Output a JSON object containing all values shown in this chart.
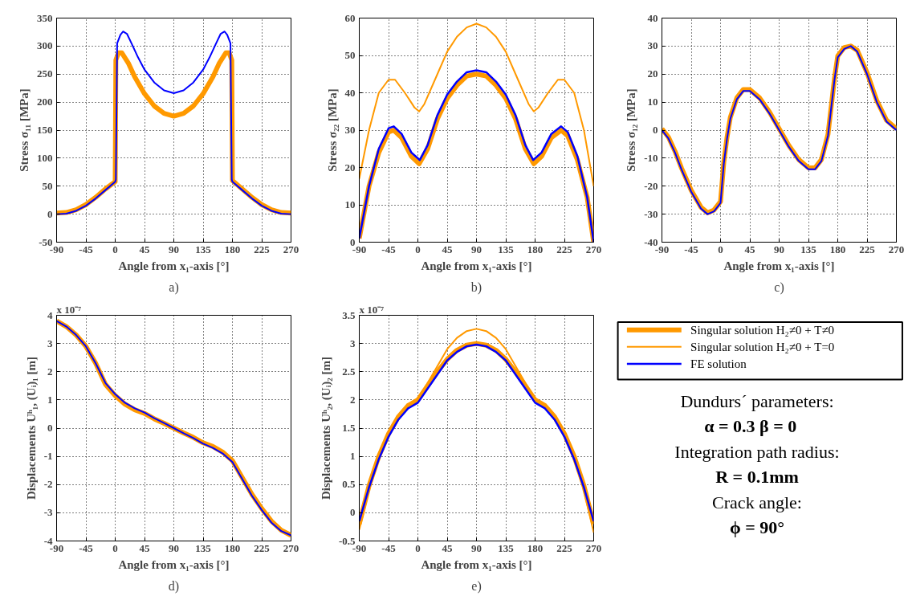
{
  "chart_data": [
    {
      "type": "line",
      "title": "a)",
      "xlabel": "Angle from x₁-axis [°]",
      "ylabel": "Stress σ₁₁ [MPa]",
      "xlim": [
        -90,
        270
      ],
      "ylim": [
        -50,
        350
      ],
      "xticks": [
        -90,
        -45,
        0,
        45,
        90,
        135,
        180,
        225,
        270
      ],
      "yticks": [
        -50,
        0,
        50,
        100,
        150,
        200,
        250,
        300,
        350
      ],
      "grid": true,
      "legend": false,
      "series": [
        {
          "color": "#ff9900",
          "x": [
            -90,
            -75,
            -60,
            -45,
            -30,
            -15,
            0,
            1,
            5,
            10,
            20,
            30,
            45,
            60,
            75,
            90,
            105,
            120,
            135,
            150,
            160,
            170,
            175,
            179,
            180,
            195,
            210,
            225,
            240,
            255,
            270
          ],
          "values": [
            2,
            3,
            8,
            17,
            30,
            45,
            58,
            275,
            288,
            288,
            270,
            245,
            215,
            193,
            180,
            175,
            180,
            193,
            215,
            245,
            270,
            288,
            288,
            275,
            60,
            45,
            30,
            17,
            8,
            3,
            2
          ]
        },
        {
          "color": "#0000ff",
          "x": [
            -90,
            -75,
            -60,
            -45,
            -30,
            -15,
            0,
            1,
            3,
            8,
            12,
            18,
            25,
            35,
            45,
            60,
            75,
            90,
            105,
            120,
            135,
            145,
            155,
            162,
            168,
            172,
            177,
            179,
            180,
            195,
            210,
            225,
            240,
            255,
            270
          ],
          "values": [
            0,
            1,
            6,
            15,
            28,
            43,
            58,
            62,
            305,
            320,
            326,
            322,
            305,
            280,
            258,
            235,
            221,
            216,
            221,
            235,
            258,
            280,
            305,
            322,
            326,
            320,
            305,
            62,
            58,
            43,
            28,
            15,
            6,
            1,
            0
          ]
        }
      ]
    },
    {
      "type": "line",
      "title": "b)",
      "xlabel": "Angle from x₁-axis [°]",
      "ylabel": "Stress σ₂₂ [MPa]",
      "xlim": [
        -90,
        270
      ],
      "ylim": [
        0,
        60
      ],
      "xticks": [
        -90,
        -45,
        0,
        45,
        90,
        135,
        180,
        225,
        270
      ],
      "yticks": [
        0,
        10,
        20,
        30,
        40,
        50,
        60
      ],
      "grid": true,
      "legend": false,
      "series": [
        {
          "color": "#ff9900",
          "x": [
            -90,
            -75,
            -60,
            -45,
            -37,
            -25,
            -10,
            2,
            15,
            30,
            45,
            60,
            75,
            90,
            105,
            120,
            135,
            150,
            165,
            178,
            190,
            205,
            220,
            230,
            245,
            260,
            270
          ],
          "values": [
            1,
            15,
            24,
            29.5,
            30,
            28,
            23,
            21,
            25,
            33,
            38.5,
            42,
            44.5,
            45,
            44.5,
            42,
            38.5,
            33,
            25,
            21,
            23,
            28,
            30,
            28.5,
            22,
            12,
            0
          ]
        },
        {
          "color": "#ff9900",
          "x": [
            -90,
            -75,
            -60,
            -45,
            -35,
            -20,
            -5,
            2,
            10,
            30,
            45,
            60,
            75,
            90,
            105,
            120,
            135,
            150,
            170,
            178,
            185,
            200,
            215,
            225,
            240,
            255,
            270
          ],
          "values": [
            17,
            30,
            40,
            43.5,
            43.5,
            40,
            36,
            35,
            37,
            45,
            51,
            55,
            57.5,
            58.5,
            57.5,
            55,
            51,
            45,
            37,
            35,
            36,
            40,
            43.5,
            43.5,
            40,
            30,
            15
          ]
        },
        {
          "color": "#0000ff",
          "x": [
            -90,
            -75,
            -60,
            -45,
            -37,
            -25,
            -10,
            3,
            15,
            30,
            45,
            60,
            75,
            90,
            105,
            120,
            135,
            150,
            165,
            177,
            190,
            205,
            220,
            230,
            245,
            260,
            270
          ],
          "values": [
            1,
            15,
            25,
            30.5,
            31,
            29,
            24,
            22,
            26,
            34,
            39.5,
            43,
            45.5,
            46,
            45.5,
            43,
            39.5,
            34,
            26,
            22,
            24,
            29,
            31,
            29.5,
            23,
            12,
            0
          ]
        }
      ]
    },
    {
      "type": "line",
      "title": "c)",
      "xlabel": "Angle from x₁-axis [°]",
      "ylabel": "Stress σ₁₂ [MPa]",
      "xlim": [
        -90,
        270
      ],
      "ylim": [
        -40,
        40
      ],
      "xticks": [
        -90,
        -45,
        0,
        45,
        90,
        135,
        180,
        225,
        270
      ],
      "yticks": [
        -40,
        -30,
        -20,
        -10,
        0,
        10,
        20,
        30,
        40
      ],
      "grid": true,
      "legend": false,
      "series": [
        {
          "color": "#ff9900",
          "x": [
            -90,
            -80,
            -70,
            -60,
            -45,
            -30,
            -20,
            -10,
            0,
            5,
            10,
            15,
            25,
            35,
            45,
            60,
            75,
            90,
            105,
            120,
            135,
            145,
            155,
            165,
            175,
            180,
            190,
            200,
            210,
            225,
            240,
            255,
            270
          ],
          "values": [
            0.5,
            -2.5,
            -7.5,
            -13.5,
            -21.5,
            -27.5,
            -29.5,
            -28.5,
            -25.5,
            -11.5,
            -2.5,
            4.5,
            11.5,
            14.5,
            14.5,
            11.5,
            6.5,
            0.5,
            -5.5,
            -10.5,
            -13.5,
            -13.5,
            -10.5,
            -1.5,
            18.5,
            26.5,
            29.5,
            30,
            28.5,
            20.5,
            10.5,
            3.5,
            0.5
          ]
        },
        {
          "color": "#0000ff",
          "x": [
            -90,
            -80,
            -70,
            -60,
            -45,
            -30,
            -20,
            -10,
            0,
            5,
            10,
            15,
            25,
            35,
            45,
            60,
            75,
            90,
            105,
            120,
            135,
            145,
            155,
            165,
            175,
            180,
            190,
            200,
            210,
            225,
            240,
            255,
            270
          ],
          "values": [
            0,
            -3,
            -8,
            -14,
            -22,
            -28,
            -30,
            -29,
            -26,
            -12,
            -3,
            4,
            11,
            14,
            14,
            11,
            6,
            0,
            -6,
            -11,
            -14,
            -14,
            -11,
            -2,
            18,
            26,
            29,
            30,
            28,
            20,
            10,
            3,
            0
          ]
        }
      ]
    },
    {
      "type": "line",
      "title": "d)",
      "xlabel": "Angle from x₁-axis [°]",
      "ylabel": "Displacements Uʰ₁, (Uᵢ)₁ [m]",
      "annotations": [
        "x 10⁻⁷"
      ],
      "xlim": [
        -90,
        270
      ],
      "ylim": [
        -4,
        4
      ],
      "xticks": [
        -90,
        -45,
        0,
        45,
        90,
        135,
        180,
        225,
        270
      ],
      "yticks": [
        -4,
        -3,
        -2,
        -1,
        0,
        1,
        2,
        3,
        4
      ],
      "grid": true,
      "legend": false,
      "series": [
        {
          "color": "#ff9900",
          "x": [
            -90,
            -75,
            -60,
            -45,
            -30,
            -15,
            0,
            15,
            30,
            45,
            60,
            75,
            90,
            105,
            120,
            135,
            150,
            165,
            180,
            195,
            210,
            225,
            240,
            255,
            270
          ],
          "values": [
            3.8,
            3.6,
            3.3,
            2.9,
            2.3,
            1.55,
            1.15,
            0.85,
            0.65,
            0.52,
            0.33,
            0.17,
            0,
            -0.17,
            -0.33,
            -0.52,
            -0.65,
            -0.85,
            -1.15,
            -1.75,
            -2.35,
            -2.85,
            -3.3,
            -3.62,
            -3.8
          ]
        },
        {
          "color": "#0000ff",
          "x": [
            -90,
            -75,
            -60,
            -45,
            -30,
            -15,
            0,
            15,
            30,
            45,
            60,
            75,
            90,
            105,
            120,
            135,
            150,
            165,
            180,
            195,
            210,
            225,
            240,
            255,
            270
          ],
          "values": [
            3.8,
            3.6,
            3.3,
            2.9,
            2.3,
            1.6,
            1.2,
            0.9,
            0.7,
            0.55,
            0.35,
            0.18,
            0,
            -0.18,
            -0.35,
            -0.55,
            -0.7,
            -0.9,
            -1.2,
            -1.8,
            -2.4,
            -2.9,
            -3.35,
            -3.65,
            -3.8
          ]
        }
      ]
    },
    {
      "type": "line",
      "title": "e)",
      "xlabel": "Angle from x₁-axis [°]",
      "ylabel": "Displacements Uʰ₂, (Uᵢ)₂ [m]",
      "annotations": [
        "x 10⁻⁷"
      ],
      "xlim": [
        -90,
        270
      ],
      "ylim": [
        -0.5,
        3.5
      ],
      "xticks": [
        -90,
        -45,
        0,
        45,
        90,
        135,
        180,
        225,
        270
      ],
      "yticks": [
        -0.5,
        0,
        0.5,
        1,
        1.5,
        2,
        2.5,
        3,
        3.5
      ],
      "grid": true,
      "legend": "right",
      "series": [
        {
          "name": "Singular solution H₂≠0 + T≠0",
          "color": "#ff9900",
          "x": [
            -90,
            -75,
            -60,
            -45,
            -30,
            -15,
            0,
            15,
            30,
            45,
            60,
            75,
            90,
            105,
            120,
            135,
            150,
            165,
            180,
            195,
            210,
            225,
            240,
            255,
            270
          ],
          "values": [
            -0.2,
            0.48,
            1.0,
            1.4,
            1.7,
            1.9,
            2.0,
            2.25,
            2.5,
            2.72,
            2.88,
            2.97,
            3.0,
            2.97,
            2.88,
            2.72,
            2.5,
            2.25,
            2.0,
            1.9,
            1.7,
            1.4,
            1.0,
            0.48,
            -0.2
          ]
        },
        {
          "name": "Singular solution H₂≠0 + T=0",
          "color": "#ff9900",
          "x": [
            -90,
            -75,
            -60,
            -45,
            -30,
            -15,
            0,
            15,
            30,
            45,
            60,
            75,
            90,
            105,
            120,
            135,
            150,
            165,
            180,
            195,
            210,
            225,
            240,
            255,
            270
          ],
          "values": [
            -0.3,
            0.4,
            0.95,
            1.4,
            1.7,
            1.9,
            2.0,
            2.3,
            2.6,
            2.9,
            3.1,
            3.22,
            3.26,
            3.22,
            3.1,
            2.9,
            2.6,
            2.3,
            2.0,
            1.9,
            1.7,
            1.4,
            0.95,
            0.4,
            -0.35
          ]
        },
        {
          "name": "FE solution",
          "color": "#0000ff",
          "x": [
            -90,
            -75,
            -60,
            -45,
            -30,
            -15,
            0,
            15,
            30,
            45,
            60,
            75,
            90,
            105,
            120,
            135,
            150,
            165,
            180,
            195,
            210,
            225,
            240,
            255,
            270
          ],
          "values": [
            -0.15,
            0.45,
            0.95,
            1.35,
            1.65,
            1.85,
            1.95,
            2.2,
            2.45,
            2.7,
            2.85,
            2.95,
            2.98,
            2.95,
            2.85,
            2.7,
            2.45,
            2.2,
            1.95,
            1.85,
            1.65,
            1.35,
            0.95,
            0.45,
            -0.15
          ]
        }
      ]
    },
    {
      "type": "other",
      "annotations": [
        "Dundurs´ parameters:",
        "α = 0.3    β = 0",
        "Integration path radius:",
        "R = 0.1mm",
        "Crack angle:",
        "ϕ = 90°"
      ]
    }
  ]
}
